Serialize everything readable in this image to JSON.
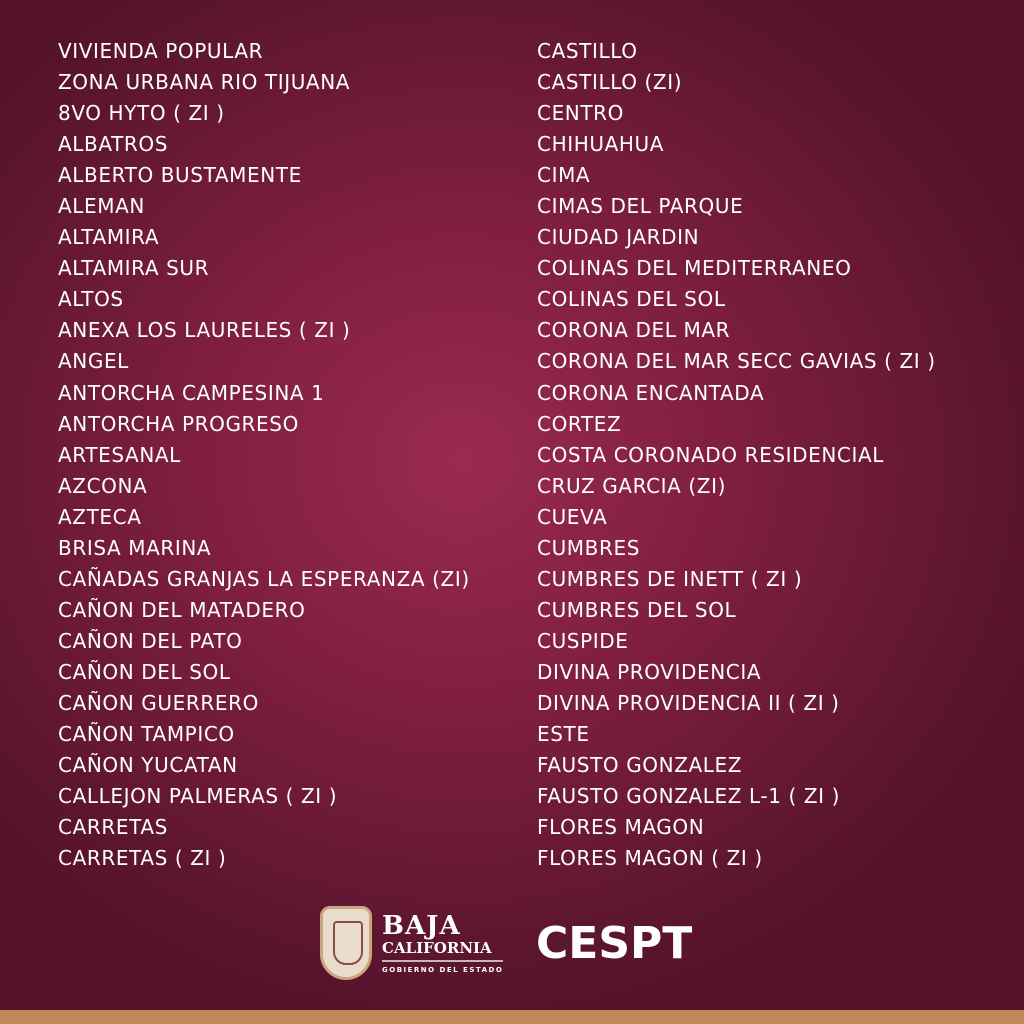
{
  "left_column": [
    "VIVIENDA POPULAR",
    "ZONA URBANA RIO TIJUANA",
    "8VO HYTO ( ZI )",
    "ALBATROS",
    "ALBERTO BUSTAMENTE",
    "ALEMAN",
    "ALTAMIRA",
    "ALTAMIRA SUR",
    "ALTOS",
    "ANEXA LOS LAURELES ( ZI )",
    "ANGEL",
    "ANTORCHA CAMPESINA 1",
    "ANTORCHA PROGRESO",
    "ARTESANAL",
    "AZCONA",
    "AZTECA",
    "BRISA MARINA",
    "CAÑADAS GRANJAS LA ESPERANZA (ZI)",
    "CAÑON DEL MATADERO",
    "CAÑON DEL PATO",
    "CAÑON DEL SOL",
    "CAÑON GUERRERO",
    "CAÑON TAMPICO",
    "CAÑON YUCATAN",
    "CALLEJON PALMERAS ( ZI )",
    "CARRETAS",
    "CARRETAS ( ZI )"
  ],
  "right_column": [
    "CASTILLO",
    "CASTILLO (ZI)",
    "CENTRO",
    "CHIHUAHUA",
    "CIMA",
    "CIMAS DEL PARQUE",
    "CIUDAD JARDIN",
    "COLINAS DEL MEDITERRANEO",
    "COLINAS DEL SOL",
    "CORONA DEL MAR",
    "CORONA DEL MAR SECC GAVIAS ( ZI )",
    "CORONA ENCANTADA",
    "CORTEZ",
    "COSTA CORONADO RESIDENCIAL",
    "CRUZ GARCIA (ZI)",
    "CUEVA",
    "CUMBRES",
    "CUMBRES DE INETT ( ZI )",
    "CUMBRES DEL SOL",
    "CUSPIDE",
    "DIVINA PROVIDENCIA",
    "DIVINA PROVIDENCIA II ( ZI )",
    "ESTE",
    "FAUSTO GONZALEZ",
    "FAUSTO GONZALEZ L-1 ( ZI )",
    "FLORES MAGON",
    "FLORES MAGON ( ZI )"
  ],
  "footer": {
    "logo_line1": "BAJA",
    "logo_line2": "CALIFORNIA",
    "logo_line3": "GOBIERNO DEL ESTADO",
    "brand": "CESPT"
  },
  "colors": {
    "background": "#7e1e40",
    "bottom_bar": "#c08a58",
    "text": "#ffffff"
  }
}
